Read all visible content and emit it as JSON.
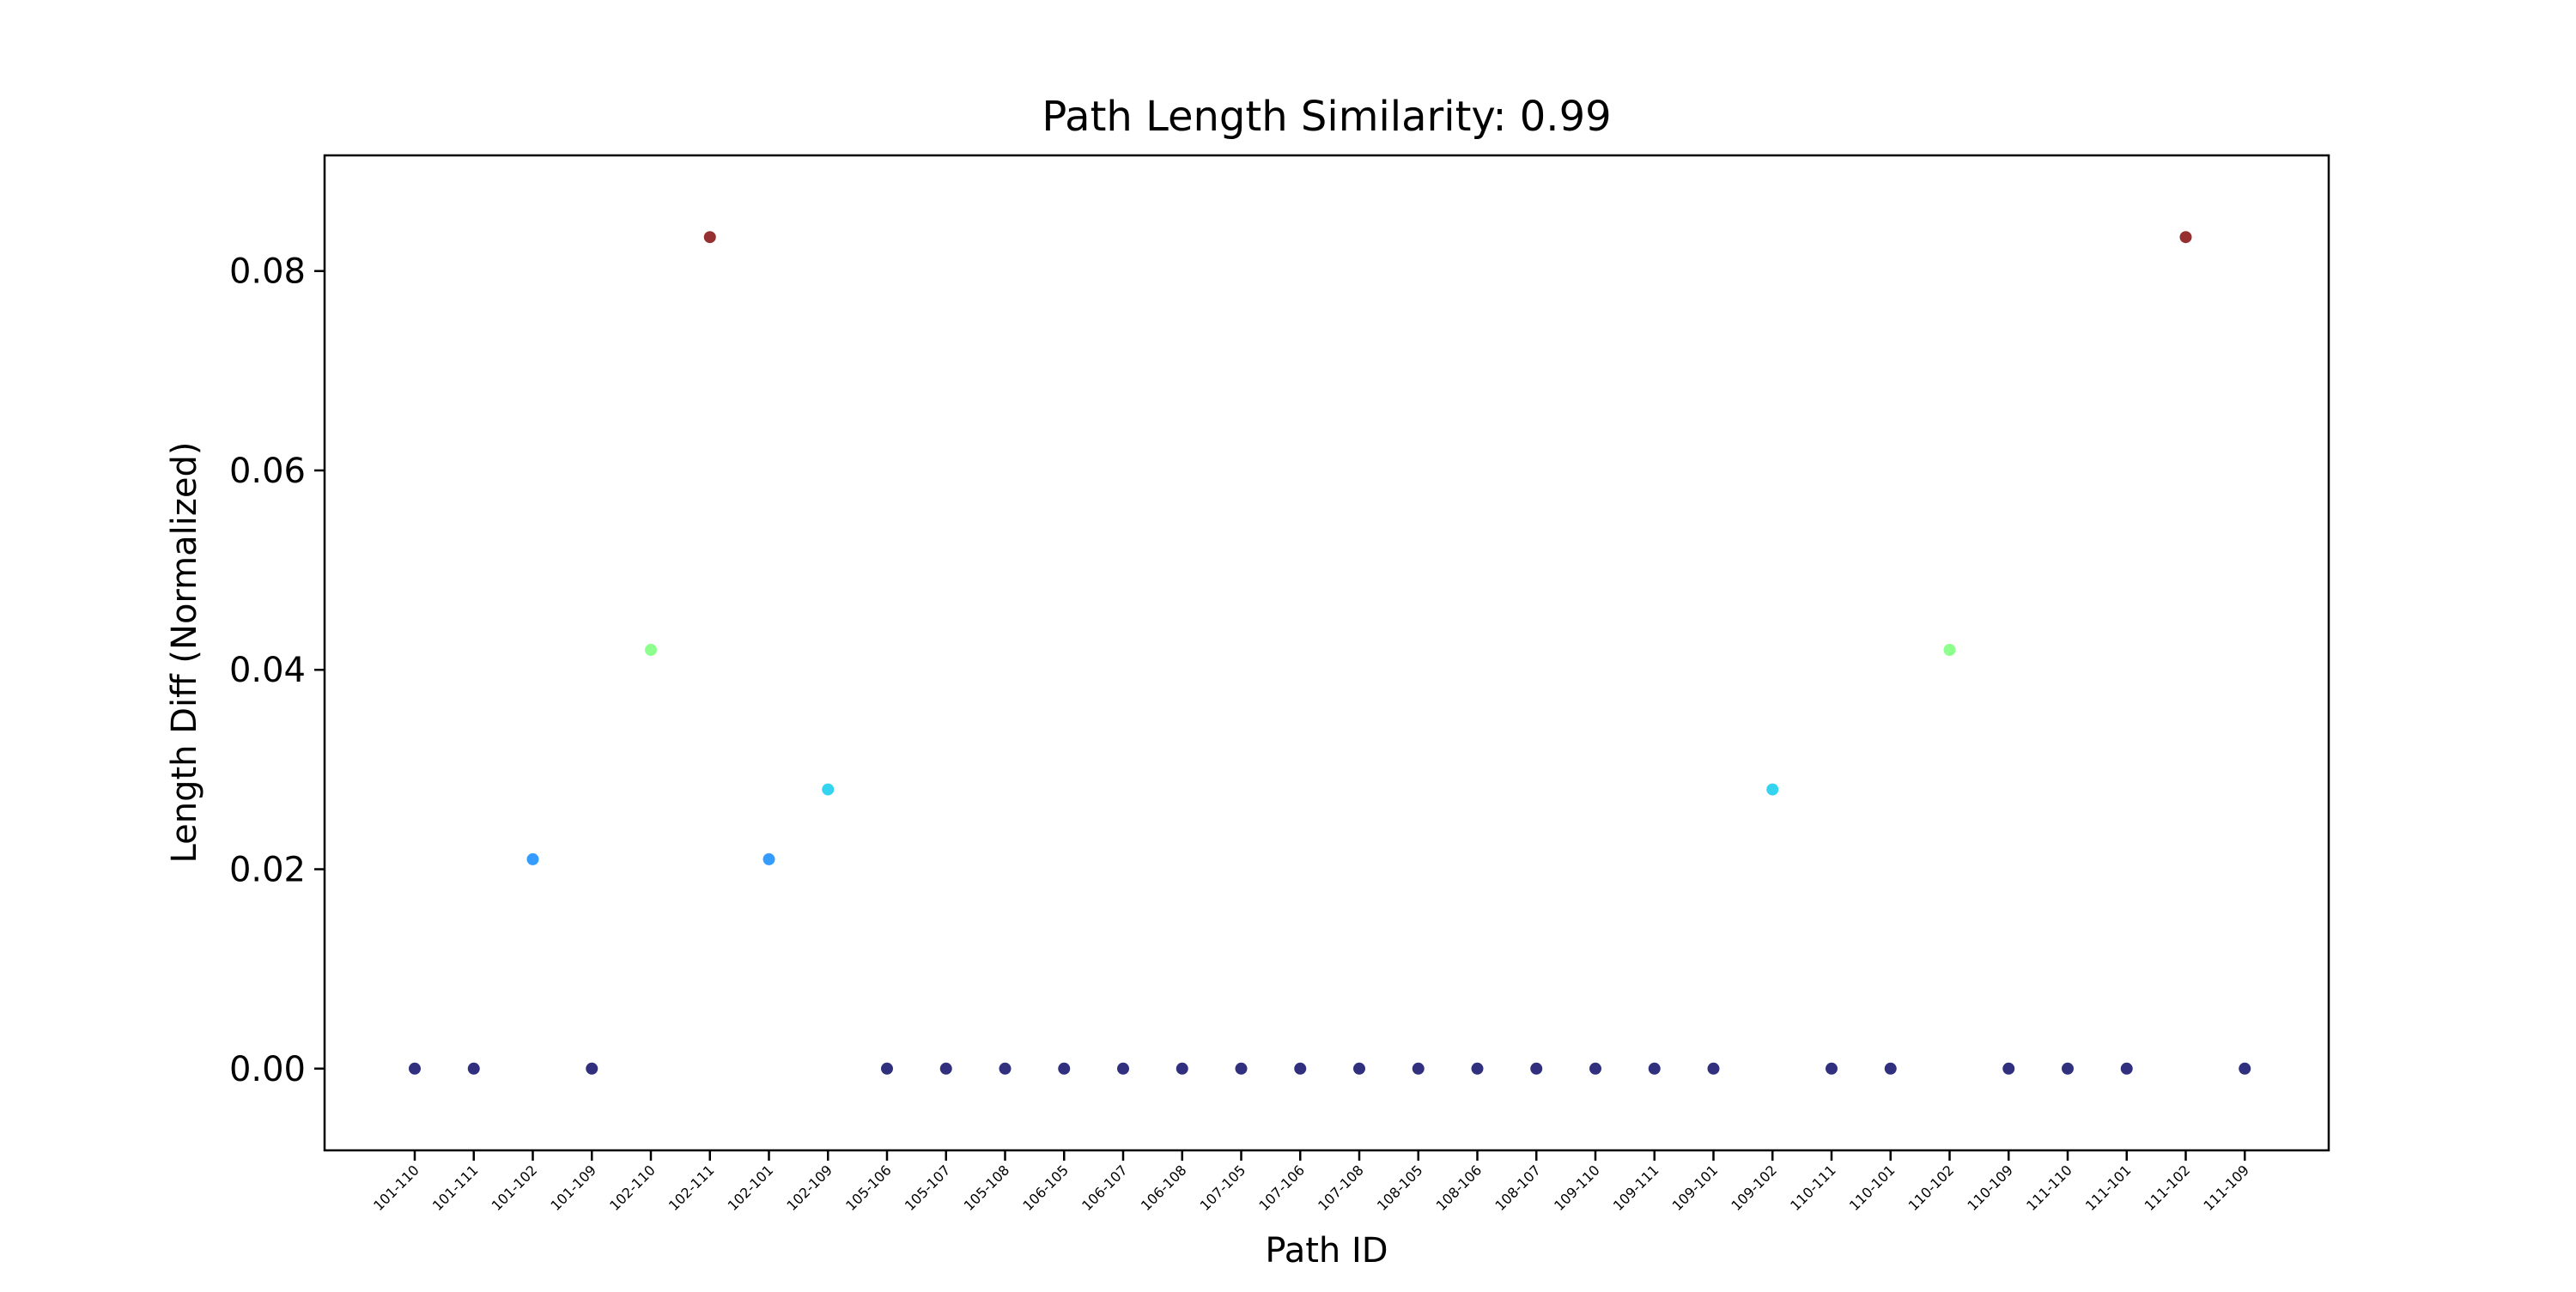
{
  "chart_data": {
    "type": "scatter",
    "title": "Path Length Similarity: 0.99",
    "xlabel": "Path ID",
    "ylabel": "Length Diff (Normalized)",
    "ylim": [
      -0.0082,
      0.0916
    ],
    "yticks": [
      0.0,
      0.02,
      0.04,
      0.06,
      0.08
    ],
    "ytick_labels": [
      "0.00",
      "0.02",
      "0.04",
      "0.06",
      "0.08"
    ],
    "grid": false,
    "legend": "none",
    "colormap": "jet",
    "categories": [
      "101-110",
      "101-111",
      "101-102",
      "101-109",
      "102-110",
      "102-111",
      "102-101",
      "102-109",
      "105-106",
      "105-107",
      "105-108",
      "106-105",
      "106-107",
      "106-108",
      "107-105",
      "107-106",
      "107-108",
      "108-105",
      "108-106",
      "108-107",
      "109-110",
      "109-111",
      "109-101",
      "109-102",
      "110-111",
      "110-101",
      "110-102",
      "110-109",
      "111-110",
      "111-101",
      "111-102",
      "111-109"
    ],
    "values": [
      0,
      0,
      0.021,
      0,
      0.042,
      0.0834,
      0.021,
      0.028,
      0,
      0,
      0,
      0,
      0,
      0,
      0,
      0,
      0,
      0,
      0,
      0,
      0,
      0,
      0,
      0.028,
      0,
      0,
      0.042,
      0,
      0,
      0,
      0.0834,
      0
    ],
    "point_colors": [
      "#191970",
      "#191970",
      "#1e90ff",
      "#191970",
      "#7fff7f",
      "#8b1a1a",
      "#1e90ff",
      "#1ecfef",
      "#191970",
      "#191970",
      "#191970",
      "#191970",
      "#191970",
      "#191970",
      "#191970",
      "#191970",
      "#191970",
      "#191970",
      "#191970",
      "#191970",
      "#191970",
      "#191970",
      "#191970",
      "#1ecfef",
      "#191970",
      "#191970",
      "#7fff7f",
      "#191970",
      "#191970",
      "#191970",
      "#8b1a1a",
      "#191970"
    ]
  }
}
